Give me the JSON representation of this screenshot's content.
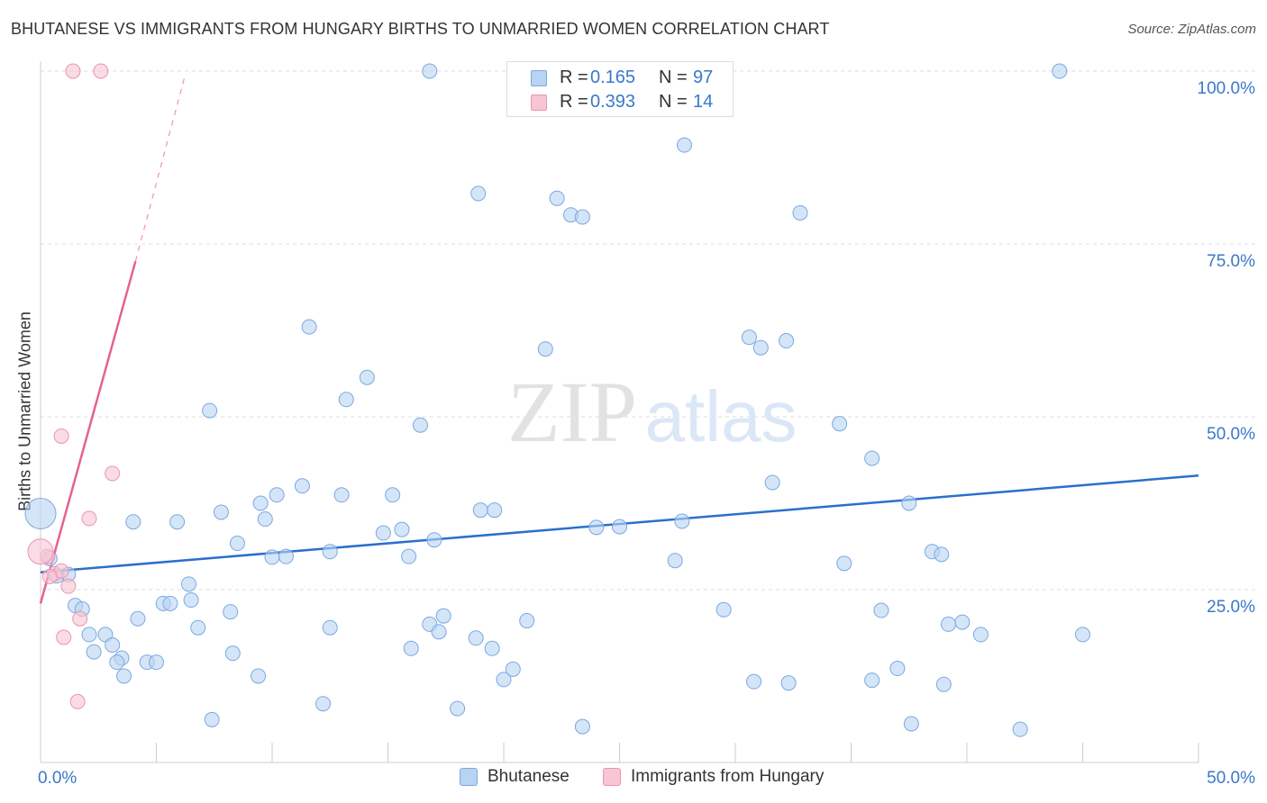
{
  "header": {
    "title": "BHUTANESE VS IMMIGRANTS FROM HUNGARY BIRTHS TO UNMARRIED WOMEN CORRELATION CHART",
    "source": "Source: ZipAtlas.com"
  },
  "legend_top": {
    "rows": [
      {
        "r_label": "R =",
        "r_value": "0.165",
        "n_label": "N =",
        "n_value": "97"
      },
      {
        "r_label": "R =",
        "r_value": "0.393",
        "n_label": "N =",
        "n_value": "14"
      }
    ]
  },
  "legend_bottom": {
    "items": [
      "Bhutanese",
      "Immigrants from Hungary"
    ]
  },
  "watermark": {
    "zip": "ZIP",
    "atlas": "atlas"
  },
  "colors": {
    "blue_fill": "#b9d3f3",
    "blue_stroke": "#7aa9e0",
    "blue_line": "#2b6fce",
    "pink_fill": "#f7c5d3",
    "pink_stroke": "#ee93ae",
    "pink_line": "#e6628f",
    "tick_label": "#3a78c9",
    "grid": "#dddddd"
  },
  "chart_data": {
    "type": "scatter",
    "title": "BHUTANESE VS IMMIGRANTS FROM HUNGARY BIRTHS TO UNMARRIED WOMEN CORRELATION CHART",
    "xlabel": "",
    "ylabel": "Births to Unmarried Women",
    "xlim": [
      0,
      50
    ],
    "ylim": [
      0,
      100
    ],
    "x_tick_labels": [
      "0.0%",
      "50.0%"
    ],
    "y_tick_values": [
      25,
      50,
      75,
      100
    ],
    "y_tick_labels": [
      "25.0%",
      "50.0%",
      "75.0%",
      "100.0%"
    ],
    "grid": true,
    "legend_position": "top-center",
    "series": [
      {
        "name": "Bhutanese",
        "color": "#b9d3f3",
        "R": 0.165,
        "N": 97,
        "trend": {
          "x": [
            0,
            50
          ],
          "y": [
            27.5,
            41.5
          ],
          "style": "solid"
        },
        "points": [
          [
            16.8,
            100
          ],
          [
            44.0,
            100
          ],
          [
            27.8,
            89.3
          ],
          [
            18.9,
            82.3
          ],
          [
            22.3,
            81.6
          ],
          [
            22.9,
            79.2
          ],
          [
            23.4,
            78.9
          ],
          [
            32.8,
            79.5
          ],
          [
            11.6,
            63.0
          ],
          [
            30.6,
            61.5
          ],
          [
            31.1,
            60.0
          ],
          [
            32.2,
            61.0
          ],
          [
            21.8,
            59.8
          ],
          [
            14.1,
            55.7
          ],
          [
            13.2,
            52.5
          ],
          [
            7.3,
            50.9
          ],
          [
            16.4,
            48.8
          ],
          [
            34.5,
            49.0
          ],
          [
            35.9,
            44.0
          ],
          [
            31.6,
            40.5
          ],
          [
            11.3,
            40.0
          ],
          [
            10.2,
            38.7
          ],
          [
            13.0,
            38.7
          ],
          [
            15.2,
            38.7
          ],
          [
            9.5,
            37.5
          ],
          [
            37.5,
            37.5
          ],
          [
            19.0,
            36.5
          ],
          [
            19.6,
            36.5
          ],
          [
            7.8,
            36.2
          ],
          [
            9.7,
            35.2
          ],
          [
            5.9,
            34.8
          ],
          [
            27.7,
            34.9
          ],
          [
            4.0,
            34.8
          ],
          [
            24.0,
            34.0
          ],
          [
            25.0,
            34.1
          ],
          [
            15.6,
            33.7
          ],
          [
            14.8,
            33.2
          ],
          [
            17.0,
            32.2
          ],
          [
            8.5,
            31.7
          ],
          [
            12.5,
            30.5
          ],
          [
            10.6,
            29.8
          ],
          [
            10.0,
            29.7
          ],
          [
            38.5,
            30.5
          ],
          [
            38.9,
            30.1
          ],
          [
            15.9,
            29.8
          ],
          [
            27.4,
            29.2
          ],
          [
            34.7,
            28.8
          ],
          [
            0.4,
            29.5
          ],
          [
            1.2,
            27.2
          ],
          [
            0.7,
            27.0
          ],
          [
            6.4,
            25.8
          ],
          [
            6.5,
            23.5
          ],
          [
            5.3,
            23.0
          ],
          [
            5.6,
            23.0
          ],
          [
            1.5,
            22.7
          ],
          [
            1.8,
            22.2
          ],
          [
            8.2,
            21.8
          ],
          [
            29.5,
            22.1
          ],
          [
            36.3,
            22.0
          ],
          [
            4.2,
            20.8
          ],
          [
            17.4,
            21.2
          ],
          [
            21.0,
            20.5
          ],
          [
            39.8,
            20.3
          ],
          [
            39.2,
            20.0
          ],
          [
            16.8,
            20.0
          ],
          [
            6.8,
            19.5
          ],
          [
            12.5,
            19.5
          ],
          [
            2.8,
            18.5
          ],
          [
            2.1,
            18.5
          ],
          [
            18.8,
            18.0
          ],
          [
            17.2,
            18.9
          ],
          [
            40.6,
            18.5
          ],
          [
            45.0,
            18.5
          ],
          [
            3.1,
            17.0
          ],
          [
            2.3,
            16.0
          ],
          [
            16.0,
            16.5
          ],
          [
            19.5,
            16.5
          ],
          [
            8.3,
            15.8
          ],
          [
            3.5,
            15.1
          ],
          [
            4.6,
            14.5
          ],
          [
            3.3,
            14.5
          ],
          [
            5.0,
            14.5
          ],
          [
            20.4,
            13.5
          ],
          [
            9.4,
            12.5
          ],
          [
            37.0,
            13.6
          ],
          [
            3.6,
            12.5
          ],
          [
            20.0,
            12.0
          ],
          [
            35.9,
            11.9
          ],
          [
            30.8,
            11.7
          ],
          [
            32.3,
            11.5
          ],
          [
            39.0,
            11.3
          ],
          [
            12.2,
            8.5
          ],
          [
            18.0,
            7.8
          ],
          [
            7.4,
            6.2
          ],
          [
            23.4,
            5.2
          ],
          [
            37.6,
            5.6
          ],
          [
            42.3,
            4.8
          ],
          [
            0.0,
            36.0
          ]
        ],
        "sizes": {
          "[0.0, 36.0]": "large"
        }
      },
      {
        "name": "Immigrants from Hungary",
        "color": "#f7c5d3",
        "R": 0.393,
        "N": 14,
        "trend": {
          "x": [
            0,
            4.1
          ],
          "y": [
            23.0,
            72.5
          ],
          "style": "solid",
          "dashed_extension_to": [
            6.2,
            98.9
          ]
        },
        "points": [
          [
            1.4,
            100
          ],
          [
            2.6,
            100
          ],
          [
            0.9,
            47.2
          ],
          [
            3.1,
            41.8
          ],
          [
            2.1,
            35.3
          ],
          [
            0.3,
            29.8
          ],
          [
            0.6,
            27.3
          ],
          [
            0.9,
            27.7
          ],
          [
            0.4,
            26.9
          ],
          [
            1.2,
            25.5
          ],
          [
            1.7,
            20.8
          ],
          [
            1.0,
            18.1
          ],
          [
            1.6,
            8.8
          ],
          [
            0.0,
            30.5
          ]
        ]
      }
    ]
  }
}
